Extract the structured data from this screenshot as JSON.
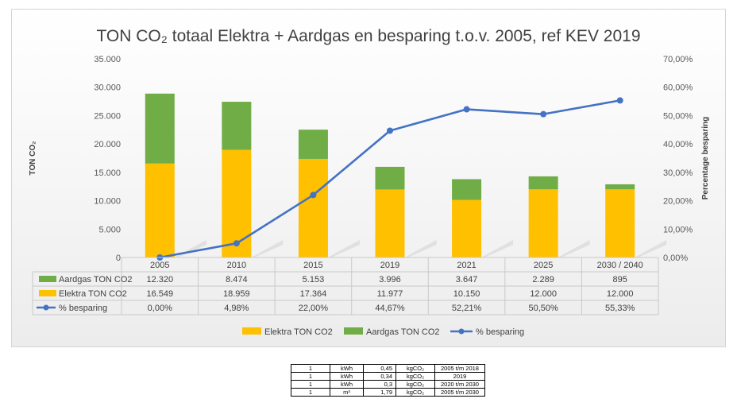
{
  "chart_data": {
    "type": "bar",
    "stacked": true,
    "title": "TON CO₂ totaal Elektra + Aardgas en besparing t.o.v. 2005, ref KEV 2019",
    "categories": [
      "2005",
      "2010",
      "2015",
      "2019",
      "2021",
      "2025",
      "2030 / 2040"
    ],
    "ylabel": "TON CO₂",
    "y2label": "Percentage besparing",
    "ylim": [
      0,
      35000
    ],
    "y2lim": [
      0,
      70
    ],
    "yticks": [
      "0",
      "5.000",
      "10.000",
      "15.000",
      "20.000",
      "25.000",
      "30.000",
      "35.000"
    ],
    "y2ticks": [
      "0,00%",
      "10,00%",
      "20,00%",
      "30,00%",
      "40,00%",
      "50,00%",
      "60,00%",
      "70,00%"
    ],
    "series": [
      {
        "name": "Elektra TON CO2",
        "kind": "bar",
        "color": "#ffc000",
        "values": [
          16549,
          18959,
          17364,
          11977,
          10150,
          12000,
          12000
        ],
        "labels": [
          "16.549",
          "18.959",
          "17.364",
          "11.977",
          "10.150",
          "12.000",
          "12.000"
        ]
      },
      {
        "name": "Aardgas TON CO2",
        "kind": "bar",
        "color": "#70ad47",
        "values": [
          12320,
          8474,
          5153,
          3996,
          3647,
          2289,
          895
        ],
        "labels": [
          "12.320",
          "8.474",
          "5.153",
          "3.996",
          "3.647",
          "2.289",
          "895"
        ]
      },
      {
        "name": "% besparing",
        "kind": "line",
        "axis": "right",
        "color": "#4472c4",
        "values": [
          0.0,
          4.98,
          22.0,
          44.67,
          52.21,
          50.5,
          55.33
        ],
        "labels": [
          "0,00%",
          "4,98%",
          "22,00%",
          "44,67%",
          "52,21%",
          "50,50%",
          "55,33%"
        ]
      }
    ],
    "table_rows": [
      "Aardgas TON CO2",
      "Elektra TON CO2",
      "% besparing"
    ],
    "legend": [
      "Elektra TON CO2",
      "Aardgas TON CO2",
      "% besparing"
    ],
    "grid": false
  },
  "factor_table": [
    [
      "1",
      "kWh",
      "0,45",
      "kgCO₂",
      "2005 t/m 2018"
    ],
    [
      "1",
      "kWh",
      "0,34",
      "kgCO₂",
      "2019"
    ],
    [
      "1",
      "kWh",
      "0,3",
      "kgCO₂",
      "2020  t/m 2030"
    ],
    [
      "1",
      "m³",
      "1,79",
      "kgCO₂",
      "2005 t/m 2030"
    ]
  ]
}
